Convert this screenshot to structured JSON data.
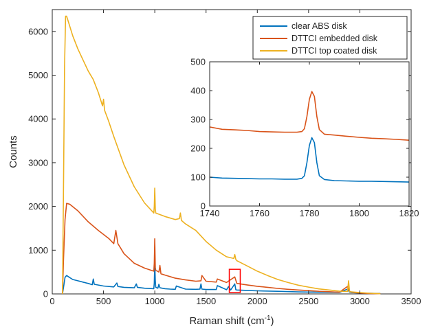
{
  "chart_data": [
    {
      "type": "line",
      "xlabel": "Raman shift (cm",
      "xlabel_sup": "-1",
      "xlabel_end": ")",
      "ylabel": "Counts",
      "xlim": [
        0,
        3500
      ],
      "ylim": [
        0,
        6500
      ],
      "xticks": [
        0,
        500,
        1000,
        1500,
        2000,
        2500,
        3000,
        3500
      ],
      "yticks": [
        0,
        1000,
        2000,
        3000,
        4000,
        5000,
        6000
      ],
      "grid": false,
      "legend_position": "top-right",
      "highlight_box": {
        "x_range": [
          1740,
          1820
        ],
        "y_range": [
          0,
          500
        ],
        "color": "#ff0000"
      },
      "series": [
        {
          "name": "clear ABS disk",
          "color": "#0072bd",
          "x": [
            100,
            110,
            125,
            140,
            160,
            200,
            250,
            300,
            350,
            390,
            400,
            410,
            500,
            600,
            630,
            640,
            700,
            800,
            820,
            830,
            900,
            990,
            995,
            1000,
            1005,
            1010,
            1030,
            1040,
            1050,
            1100,
            1150,
            1200,
            1210,
            1300,
            1400,
            1440,
            1450,
            1460,
            1500,
            1600,
            1610,
            1700,
            1720,
            1740,
            1780,
            1790,
            1800,
            1900,
            2000,
            2200,
            2400,
            2600,
            2800,
            2880,
            2900,
            2920,
            3000,
            3100,
            3200
          ],
          "y": [
            0,
            150,
            380,
            420,
            390,
            330,
            300,
            270,
            240,
            210,
            340,
            220,
            180,
            160,
            250,
            170,
            150,
            140,
            230,
            150,
            130,
            120,
            250,
            720,
            300,
            150,
            130,
            220,
            140,
            120,
            110,
            105,
            180,
            110,
            105,
            110,
            230,
            110,
            100,
            100,
            190,
            95,
            170,
            90,
            230,
            95,
            90,
            80,
            70,
            60,
            45,
            40,
            35,
            110,
            40,
            30,
            20,
            15,
            10
          ]
        },
        {
          "name": "DTTCI embedded disk",
          "color": "#d95319",
          "x": [
            100,
            110,
            125,
            140,
            170,
            250,
            350,
            450,
            550,
            600,
            620,
            640,
            700,
            800,
            900,
            990,
            995,
            1000,
            1005,
            1010,
            1040,
            1050,
            1060,
            1100,
            1200,
            1300,
            1400,
            1450,
            1460,
            1500,
            1600,
            1610,
            1700,
            1780,
            1800,
            1900,
            2000,
            2100,
            2200,
            2300,
            2400,
            2500,
            2600,
            2700,
            2800,
            2880,
            2900,
            2920,
            2950,
            3000,
            3100,
            3200
          ],
          "y": [
            0,
            800,
            1700,
            2070,
            2050,
            1900,
            1650,
            1450,
            1270,
            1150,
            1450,
            1150,
            920,
            700,
            590,
            520,
            700,
            1260,
            600,
            540,
            500,
            650,
            460,
            430,
            360,
            320,
            290,
            300,
            420,
            290,
            270,
            340,
            260,
            390,
            240,
            205,
            175,
            150,
            125,
            105,
            90,
            75,
            60,
            50,
            40,
            170,
            60,
            40,
            30,
            20,
            10,
            5
          ]
        },
        {
          "name": "DTTCI top coated disk",
          "color": "#edb120",
          "x": [
            100,
            110,
            120,
            130,
            140,
            160,
            200,
            250,
            300,
            350,
            400,
            450,
            490,
            500,
            510,
            550,
            600,
            700,
            800,
            900,
            990,
            995,
            1000,
            1005,
            1010,
            1100,
            1200,
            1240,
            1250,
            1260,
            1300,
            1400,
            1500,
            1600,
            1700,
            1770,
            1780,
            1790,
            1800,
            1900,
            2000,
            2100,
            2200,
            2300,
            2400,
            2500,
            2600,
            2700,
            2800,
            2880,
            2890,
            2900,
            3000,
            3100,
            3200
          ],
          "y": [
            0,
            2500,
            5200,
            6350,
            6350,
            6200,
            5900,
            5600,
            5350,
            5100,
            4900,
            4600,
            4300,
            4450,
            4200,
            3950,
            3600,
            2950,
            2450,
            2080,
            1850,
            2000,
            2420,
            1950,
            1850,
            1770,
            1700,
            1720,
            1850,
            1680,
            1600,
            1450,
            1200,
            1000,
            850,
            810,
            900,
            790,
            760,
            640,
            520,
            420,
            330,
            260,
            200,
            155,
            115,
            90,
            65,
            55,
            300,
            50,
            30,
            15,
            5
          ]
        }
      ]
    },
    {
      "type": "line",
      "xlabel": "",
      "ylabel": "",
      "xlim": [
        1740,
        1820
      ],
      "ylim": [
        0,
        500
      ],
      "xticks": [
        1740,
        1760,
        1780,
        1800,
        1820
      ],
      "yticks": [
        0,
        100,
        200,
        300,
        400,
        500
      ],
      "grid": false,
      "series": [
        {
          "name": "clear ABS disk",
          "color": "#0072bd",
          "x": [
            1740,
            1745,
            1750,
            1755,
            1760,
            1765,
            1770,
            1775,
            1777,
            1778,
            1779,
            1780,
            1781,
            1782,
            1783,
            1784,
            1786,
            1790,
            1795,
            1800,
            1805,
            1810,
            1815,
            1820
          ],
          "y": [
            100,
            97,
            96,
            95,
            94,
            94,
            93,
            93,
            96,
            105,
            150,
            210,
            237,
            220,
            150,
            105,
            92,
            88,
            87,
            86,
            86,
            85,
            84,
            83
          ]
        },
        {
          "name": "DTTCI embedded disk",
          "color": "#d95319",
          "x": [
            1740,
            1745,
            1750,
            1755,
            1760,
            1765,
            1770,
            1775,
            1777,
            1778,
            1779,
            1780,
            1781,
            1782,
            1783,
            1784,
            1786,
            1790,
            1795,
            1800,
            1805,
            1810,
            1815,
            1820
          ],
          "y": [
            274,
            266,
            264,
            262,
            258,
            257,
            256,
            256,
            258,
            268,
            310,
            370,
            397,
            380,
            310,
            265,
            249,
            246,
            242,
            238,
            235,
            233,
            231,
            228
          ]
        }
      ]
    }
  ]
}
